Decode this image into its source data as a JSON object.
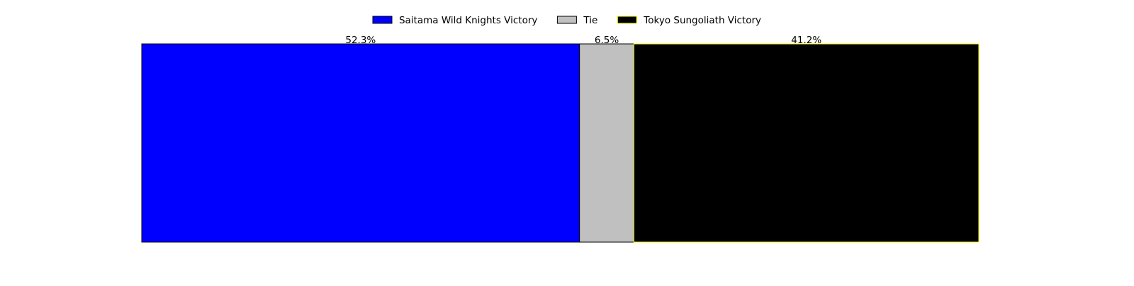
{
  "chart_data": {
    "type": "bar",
    "orientation": "horizontal",
    "stacked": true,
    "title": "",
    "xlabel": "",
    "ylabel": "",
    "xlim": [
      0,
      100
    ],
    "grid": false,
    "axes_visible": false,
    "legend_position": "top-center",
    "categories": [
      ""
    ],
    "series": [
      {
        "name": "Saitama Wild Knights Victory",
        "values": [
          52.3
        ],
        "label": "52.3%",
        "color": "#0000ff",
        "edge_color": "#000000"
      },
      {
        "name": "Tie",
        "values": [
          6.5
        ],
        "label": "6.5%",
        "color": "#c0c0c0",
        "edge_color": "#000000"
      },
      {
        "name": "Tokyo Sungoliath Victory",
        "values": [
          41.2
        ],
        "label": "41.2%",
        "color": "#000000",
        "edge_color": "#ffff00"
      }
    ]
  }
}
